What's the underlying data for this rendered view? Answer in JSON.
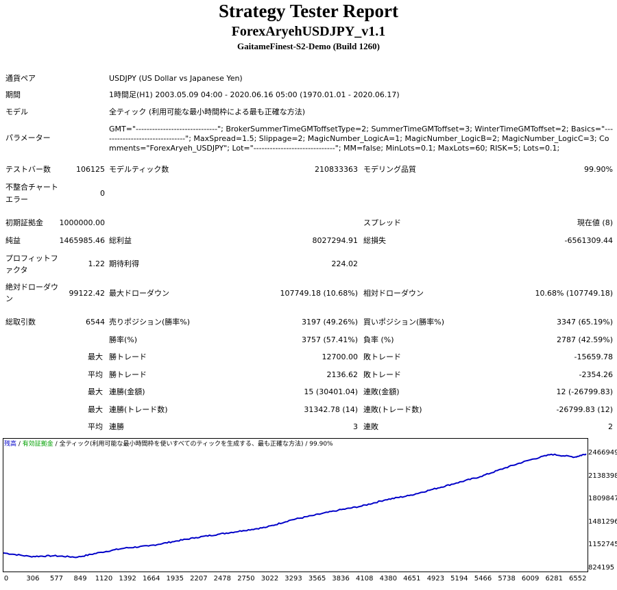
{
  "report": {
    "title": "Strategy Tester Report",
    "expert": "ForexAryehUSDJPY_v1.1",
    "server": "GaitameFinest-S2-Demo (Build 1260)"
  },
  "info": [
    {
      "label": "通貨ペア",
      "value": "USDJPY (US Dollar vs Japanese Yen)"
    },
    {
      "label": "期間",
      "value": "1時間足(H1) 2003.05.09 04:00 - 2020.06.16 05:00 (1970.01.01 - 2020.06.17)"
    },
    {
      "label": "モデル",
      "value": "全ティック (利用可能な最小時間枠による最も正確な方法)"
    },
    {
      "label": "パラメーター",
      "value": "GMT=\"------------------------------\"; BrokerSummerTimeGMToffsetType=2; SummerTimeGMToffset=3; WinterTimeGMToffset=2; Basics=\"-------------------------------\"; MaxSpread=1.5; Slippage=2; MagicNumber_LogicA=1; MagicNumber_LogicB=2; MagicNumber_LogicC=3; Comments=\"ForexAryeh_USDJPY\"; Lot=\"------------------------------\"; MM=false; MinLots=0.1; MaxLots=60; RISK=5; Lots=0.1;"
    }
  ],
  "stats": {
    "bars_label": "テストバー数",
    "bars": "106125",
    "ticks_label": "モデルティック数",
    "ticks": "210833363",
    "quality_label": "モデリング品質",
    "quality": "99.90%",
    "mismatch_label": "不整合チャートエラー",
    "mismatch": "0",
    "deposit_label": "初期証拠金",
    "deposit": "1000000.00",
    "spread_label": "スプレッド",
    "spread": "現在値 (8)",
    "net_label": "純益",
    "net": "1465985.46",
    "gross_profit_label": "総利益",
    "gross_profit": "8027294.91",
    "gross_loss_label": "総損失",
    "gross_loss": "-6561309.44",
    "pf_label": "プロフィットファクタ",
    "pf": "1.22",
    "expected_label": "期待利得",
    "expected": "224.02",
    "abs_dd_label": "絶対ドローダウン",
    "abs_dd": "99122.42",
    "max_dd_label": "最大ドローダウン",
    "max_dd": "107749.18 (10.68%)",
    "rel_dd_label": "相対ドローダウン",
    "rel_dd": "10.68% (107749.18)",
    "total_trades_label": "総取引数",
    "total_trades": "6544",
    "short_label": "売りポジション(勝率%)",
    "short": "3197 (49.26%)",
    "long_label": "買いポジション(勝率%)",
    "long": "3347 (65.19%)",
    "win_pct_label": "勝率(%)",
    "win_pct": "3757 (57.41%)",
    "loss_pct_label": "負率 (%)",
    "loss_pct": "2787 (42.59%)",
    "max_prefix": "最大",
    "avg_prefix": "平均",
    "win_trade_label": "勝トレード",
    "loss_trade_label": "敗トレード",
    "largest_win": "12700.00",
    "largest_loss": "-15659.78",
    "avg_win": "2136.62",
    "avg_loss": "-2354.26",
    "cons_win_amt_label": "連勝(金額)",
    "cons_win_amt": "15 (30401.04)",
    "cons_loss_amt_label": "連敗(金額)",
    "cons_loss_amt": "12 (-26799.83)",
    "cons_win_cnt_label": "連勝(トレード数)",
    "cons_win_cnt": "31342.78 (14)",
    "cons_loss_cnt_label": "連敗(トレード数)",
    "cons_loss_cnt": "-26799.83 (12)",
    "avg_cons_win_label": "連勝",
    "avg_cons_win": "3",
    "avg_cons_loss_label": "連敗",
    "avg_cons_loss": "2"
  },
  "chart_legend": {
    "balance": "残高",
    "sep1": " / ",
    "equity": "有効証拠金",
    "sep2": " / ",
    "model": "全ティック(利用可能な最小時間枠を使いすべてのティックを生成する、最も正確な方法)",
    "sep3": " / ",
    "quality": "99.90%"
  },
  "chart_data": {
    "type": "line",
    "series": [
      {
        "name": "残高",
        "color": "#0000c8",
        "x": [
          0,
          306,
          577,
          849,
          1120,
          1392,
          1664,
          1935,
          2207,
          2478,
          2750,
          3022,
          3293,
          3565,
          3836,
          4108,
          4380,
          4651,
          4923,
          5194,
          5466,
          5738,
          6009,
          6281,
          6552,
          6680
        ],
        "values": [
          1050000,
          1000000,
          1010000,
          990000,
          1060000,
          1120000,
          1150000,
          1210000,
          1270000,
          1320000,
          1370000,
          1420000,
          1520000,
          1590000,
          1660000,
          1720000,
          1810000,
          1870000,
          1960000,
          2050000,
          2140000,
          2260000,
          2370000,
          2460000,
          2420000,
          2466949
        ]
      }
    ],
    "yticks": [
      "2466949",
      "2138398",
      "1809847",
      "1481296",
      "1152745",
      "824195"
    ],
    "xticks": [
      "0",
      "306",
      "577",
      "849",
      "1120",
      "1392",
      "1664",
      "1935",
      "2207",
      "2478",
      "2750",
      "3022",
      "3293",
      "3565",
      "3836",
      "4108",
      "4380",
      "4651",
      "4923",
      "5194",
      "5466",
      "5738",
      "6009",
      "6281",
      "6552"
    ],
    "ylim": [
      824195,
      2466949
    ],
    "xlim": [
      0,
      6680
    ]
  }
}
